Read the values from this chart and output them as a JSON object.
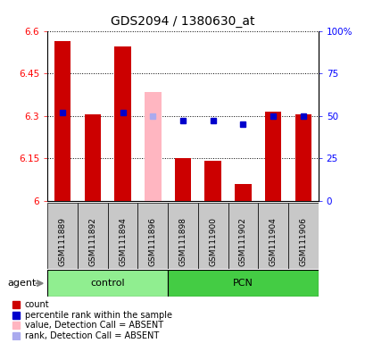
{
  "title": "GDS2094 / 1380630_at",
  "samples": [
    "GSM111889",
    "GSM111892",
    "GSM111894",
    "GSM111896",
    "GSM111898",
    "GSM111900",
    "GSM111902",
    "GSM111904",
    "GSM111906"
  ],
  "groups": [
    {
      "name": "control",
      "indices": [
        0,
        1,
        2,
        3
      ],
      "color": "#90EE90"
    },
    {
      "name": "PCN",
      "indices": [
        4,
        5,
        6,
        7,
        8
      ],
      "color": "#44CC44"
    }
  ],
  "bar_values": [
    6.565,
    6.305,
    6.545,
    null,
    6.15,
    6.14,
    6.06,
    6.315,
    6.305
  ],
  "bar_absent_values": [
    null,
    null,
    null,
    6.385,
    null,
    null,
    null,
    null,
    null
  ],
  "percentile_values": [
    52,
    null,
    52,
    null,
    47,
    47,
    45,
    50,
    50
  ],
  "percentile_absent_values": [
    null,
    null,
    null,
    50,
    null,
    null,
    null,
    null,
    null
  ],
  "ylim": [
    6.0,
    6.6
  ],
  "y2lim": [
    0,
    100
  ],
  "yticks": [
    6.0,
    6.15,
    6.3,
    6.45,
    6.6
  ],
  "ytick_labels": [
    "6",
    "6.15",
    "6.3",
    "6.45",
    "6.6"
  ],
  "y2ticks": [
    0,
    25,
    50,
    75,
    100
  ],
  "y2tick_labels": [
    "0",
    "25",
    "50",
    "75",
    "100%"
  ],
  "bar_color": "#CC0000",
  "bar_absent_color": "#FFB6C1",
  "dot_color": "#0000CC",
  "dot_absent_color": "#AAAAEE",
  "legend_items": [
    {
      "label": "count",
      "color": "#CC0000"
    },
    {
      "label": "percentile rank within the sample",
      "color": "#0000CC"
    },
    {
      "label": "value, Detection Call = ABSENT",
      "color": "#FFB6C1"
    },
    {
      "label": "rank, Detection Call = ABSENT",
      "color": "#AAAAEE"
    }
  ],
  "bar_width": 0.55,
  "agent_text": "agent",
  "arrow_color": "#808080",
  "sample_box_color": "#C8C8C8",
  "group_box_color_1": "#90EE90",
  "group_box_color_2": "#44CC44"
}
